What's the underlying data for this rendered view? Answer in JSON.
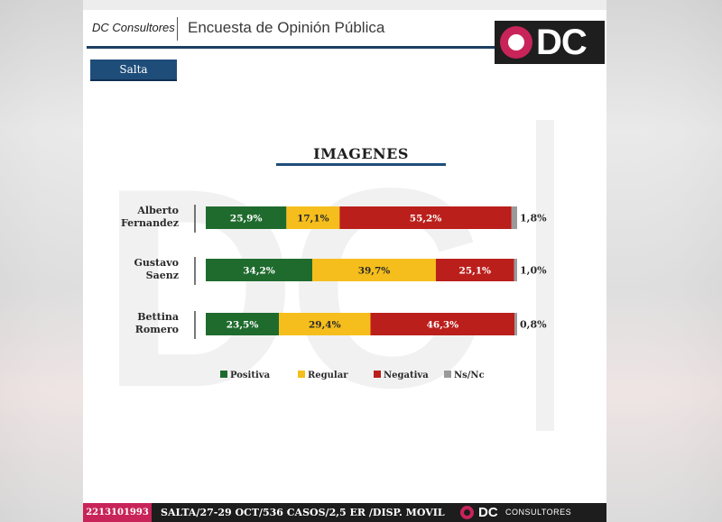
{
  "header": {
    "brand": "DC Consultores",
    "title": "Encuesta de Opinión Pública",
    "logo_text": "DC"
  },
  "region_tab": "Salta",
  "footer": {
    "phone": "2213101993",
    "info": "SALTA/27-29 OCT/536 CASOS/2,5 ER /DISP. MOVIL",
    "logo_dc": "DC",
    "logo_text": "CONSULTORES"
  },
  "colors": {
    "positiva": "#1f6b2e",
    "regular": "#f5be1c",
    "negativa": "#bb1f1b",
    "nsnc": "#9a9a9a",
    "accent": "#1f4d7a",
    "brand_pink": "#c8245a"
  },
  "chart_data": {
    "type": "bar",
    "orientation": "horizontal",
    "stacked": true,
    "title": "IMAGENES",
    "categories": [
      [
        "Alberto",
        "Fernandez"
      ],
      [
        "Gustavo",
        "Saenz"
      ],
      [
        "Bettina",
        "Romero"
      ]
    ],
    "series": [
      {
        "name": "Positiva",
        "values": [
          25.9,
          34.2,
          23.5
        ],
        "labels": [
          "25,9%",
          "34,2%",
          "23,5%"
        ]
      },
      {
        "name": "Regular",
        "values": [
          17.1,
          39.7,
          29.4
        ],
        "labels": [
          "17,1%",
          "39,7%",
          "29,4%"
        ]
      },
      {
        "name": "Negativa",
        "values": [
          55.2,
          25.1,
          46.3
        ],
        "labels": [
          "55,2%",
          "25,1%",
          "46,3%"
        ]
      },
      {
        "name": "Ns/Nc",
        "values": [
          1.8,
          1.0,
          0.8
        ],
        "labels": [
          "1,8%",
          "1,0%",
          "0,8%"
        ]
      }
    ],
    "xlim": [
      0,
      100
    ],
    "legend_position": "bottom"
  }
}
